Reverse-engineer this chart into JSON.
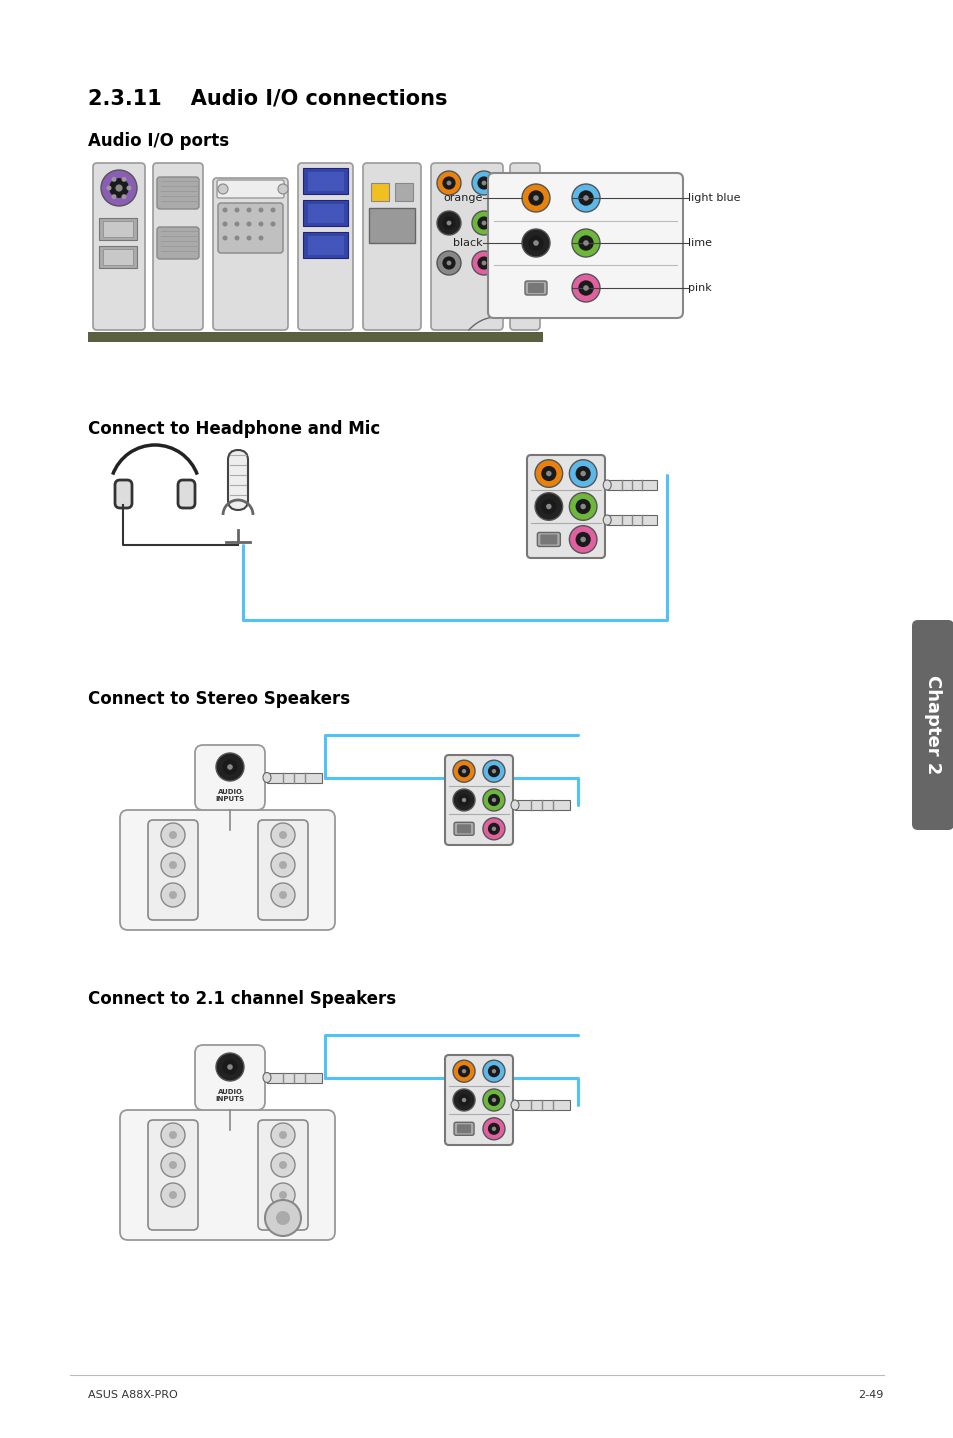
{
  "title": "2.3.11    Audio I/O connections",
  "bg_color": "#ffffff",
  "text_color": "#000000",
  "section_title_size": 15,
  "subsection_title_size": 12,
  "footer_left": "ASUS A88X-PRO",
  "footer_right": "2-49",
  "chapter_label": "Chapter 2",
  "subsections": [
    "Audio I/O ports",
    "Connect to Headphone and Mic",
    "Connect to Stereo Speakers",
    "Connect to 2.1 channel Speakers"
  ],
  "port_colors": {
    "orange": "#E8820C",
    "light_blue": "#5BB8E8",
    "black": "#222222",
    "lime": "#6DB83A",
    "pink": "#E060A0",
    "purple": "#8B5DB5",
    "red": "#CC2222",
    "yellow": "#F0C020",
    "white_port": "#EEEEEE",
    "gray_port": "#888888"
  },
  "connector_blue": "#4FC3F7",
  "connector_blue_dark": "#2196F3",
  "plug_color": "#DDDDDD",
  "panel_bg": "#E8E8E8",
  "panel_ec": "#888888"
}
